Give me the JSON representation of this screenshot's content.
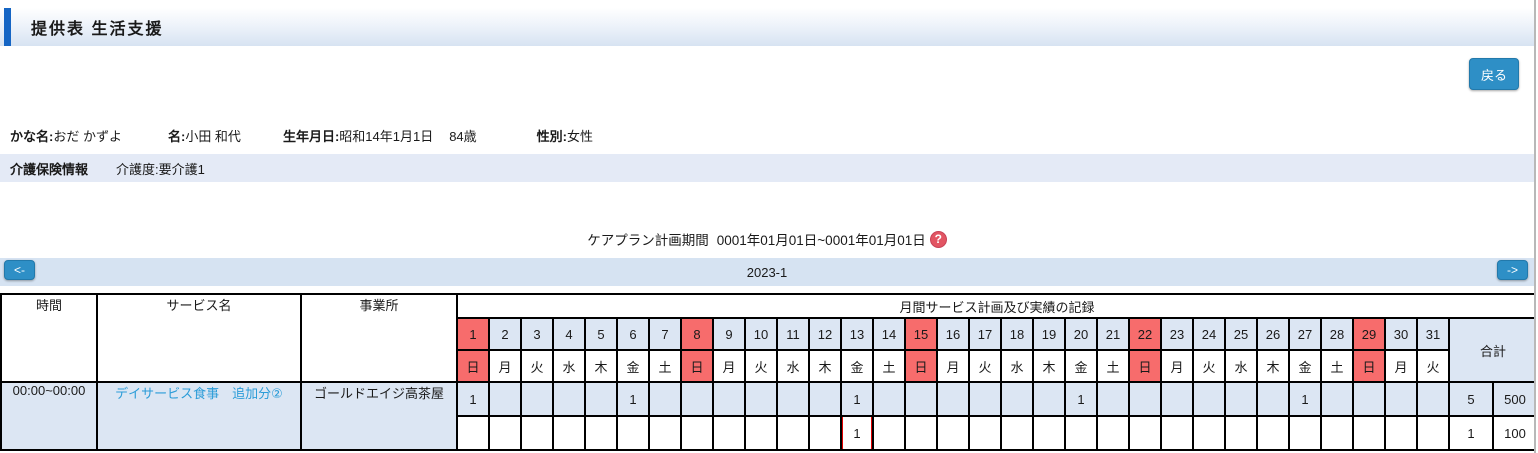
{
  "page": {
    "title": "提供表 生活支援",
    "back_button": "戻る"
  },
  "patient": {
    "kana_label": "かな名:",
    "kana": "おだ かずよ",
    "name_label": "名:",
    "name": "小田 和代",
    "birth_label": "生年月日:",
    "birth": "昭和14年1月1日",
    "age": "84歳",
    "gender_label": "性別:",
    "gender": "女性"
  },
  "insurance": {
    "label": "介護保険情報",
    "detail": "介護度:要介護1"
  },
  "careplan": {
    "label": "ケアプラン計画期間",
    "period": "0001年01月01日~0001年01月01日",
    "help_glyph": "?"
  },
  "month_nav": {
    "prev": "<-",
    "month": "2023-1",
    "next": "->"
  },
  "table": {
    "headers": {
      "time": "時間",
      "service": "サービス名",
      "office": "事業所",
      "monthly": "月間サービス計画及び実績の記録",
      "total": "合計"
    },
    "days": [
      {
        "num": "1",
        "dow": "日",
        "sunday": true
      },
      {
        "num": "2",
        "dow": "月",
        "sunday": false
      },
      {
        "num": "3",
        "dow": "火",
        "sunday": false
      },
      {
        "num": "4",
        "dow": "水",
        "sunday": false
      },
      {
        "num": "5",
        "dow": "木",
        "sunday": false
      },
      {
        "num": "6",
        "dow": "金",
        "sunday": false
      },
      {
        "num": "7",
        "dow": "土",
        "sunday": false
      },
      {
        "num": "8",
        "dow": "日",
        "sunday": true
      },
      {
        "num": "9",
        "dow": "月",
        "sunday": false
      },
      {
        "num": "10",
        "dow": "火",
        "sunday": false
      },
      {
        "num": "11",
        "dow": "水",
        "sunday": false
      },
      {
        "num": "12",
        "dow": "木",
        "sunday": false
      },
      {
        "num": "13",
        "dow": "金",
        "sunday": false
      },
      {
        "num": "14",
        "dow": "土",
        "sunday": false
      },
      {
        "num": "15",
        "dow": "日",
        "sunday": true
      },
      {
        "num": "16",
        "dow": "月",
        "sunday": false
      },
      {
        "num": "17",
        "dow": "火",
        "sunday": false
      },
      {
        "num": "18",
        "dow": "水",
        "sunday": false
      },
      {
        "num": "19",
        "dow": "木",
        "sunday": false
      },
      {
        "num": "20",
        "dow": "金",
        "sunday": false
      },
      {
        "num": "21",
        "dow": "土",
        "sunday": false
      },
      {
        "num": "22",
        "dow": "日",
        "sunday": true
      },
      {
        "num": "23",
        "dow": "月",
        "sunday": false
      },
      {
        "num": "24",
        "dow": "火",
        "sunday": false
      },
      {
        "num": "25",
        "dow": "水",
        "sunday": false
      },
      {
        "num": "26",
        "dow": "木",
        "sunday": false
      },
      {
        "num": "27",
        "dow": "金",
        "sunday": false
      },
      {
        "num": "28",
        "dow": "土",
        "sunday": false
      },
      {
        "num": "29",
        "dow": "日",
        "sunday": true
      },
      {
        "num": "30",
        "dow": "月",
        "sunday": false
      },
      {
        "num": "31",
        "dow": "火",
        "sunday": false
      }
    ],
    "rows": [
      {
        "time": "00:00~00:00",
        "service": "デイサービス食事　追加分②",
        "office": "ゴールドエイジ高茶屋",
        "plan": {
          "cells": {
            "1": "1",
            "6": "1",
            "13": "1",
            "20": "1",
            "27": "1"
          },
          "count": "5",
          "amount": "500"
        },
        "actual": {
          "cells": {
            "13": "1"
          },
          "highlight_day": "13",
          "count": "1",
          "amount": "100"
        }
      }
    ]
  },
  "colors": {
    "accent_blue": "#1565c4",
    "button_blue": "#2e8fc6",
    "sunday_red": "#f76c6c",
    "cell_blue": "#dce6f3",
    "insurance_bg": "#e4eaf6",
    "navbar_bg": "#d6e3f2",
    "link_blue": "#2b9cd8",
    "highlight_red": "#e30000",
    "help_icon_bg": "#e25563"
  }
}
